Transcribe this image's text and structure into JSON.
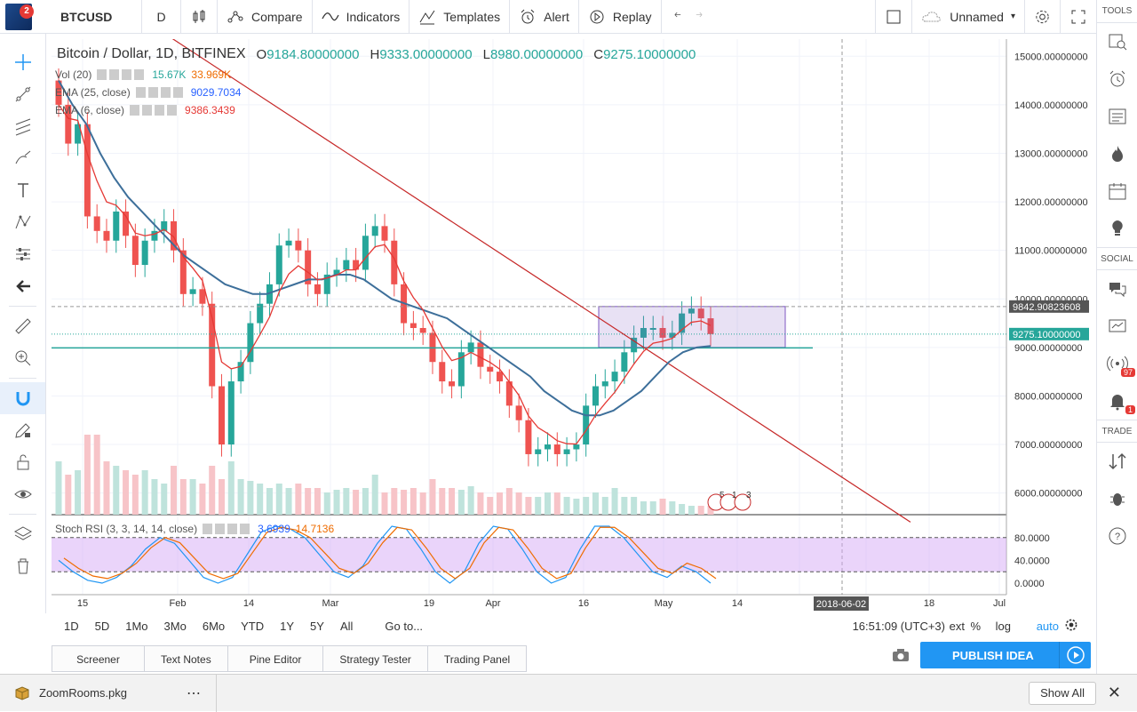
{
  "topbar": {
    "badge": "2",
    "symbol": "BTCUSD",
    "interval": "D",
    "compare": "Compare",
    "indicators": "Indicators",
    "templates": "Templates",
    "alert": "Alert",
    "replay": "Replay",
    "layout_name": "Unnamed"
  },
  "legend": {
    "title": "Bitcoin / Dollar, 1D, BITFINEX",
    "o_label": "O",
    "o": "9184.80000000",
    "h_label": "H",
    "h": "9333.00000000",
    "l_label": "L",
    "l": "8980.00000000",
    "c_label": "C",
    "c": "9275.10000000"
  },
  "indicators": {
    "vol_name": "Vol (20)",
    "vol_v1": "15.67K",
    "vol_v2": "33.969K",
    "ema25_name": "EMA (25, close)",
    "ema25_v": "9029.7034",
    "ema6_name": "EMA (6, close)",
    "ema6_v": "9386.3439",
    "stoch_name": "Stoch RSI (3, 3, 14, 14, close)",
    "stoch_k": "3.6939",
    "stoch_d": "14.7136"
  },
  "price_axis": [
    "15000.00000000",
    "14000.00000000",
    "13000.00000000",
    "12000.00000000",
    "11000.00000000",
    "10000.00000000",
    "9000.00000000",
    "8000.00000000",
    "7000.00000000",
    "6000.00000000"
  ],
  "price_markers": {
    "line": "9842.90823608",
    "last": "9275.10000000"
  },
  "stoch_axis": [
    "80.0000",
    "40.0000",
    "0.0000"
  ],
  "time_axis": [
    "15",
    "Feb",
    "14",
    "Mar",
    "19",
    "Apr",
    "16",
    "May",
    "14",
    "18",
    "Jul"
  ],
  "crosshair_date": "2018-06-02",
  "event_labels": [
    "5",
    "1",
    "3"
  ],
  "ranges": [
    "1D",
    "5D",
    "1Mo",
    "3Mo",
    "6Mo",
    "YTD",
    "1Y",
    "5Y",
    "All"
  ],
  "goto": "Go to...",
  "clock": "16:51:09 (UTC+3)",
  "scale_opts": {
    "ext": "ext",
    "pct": "%",
    "log": "log",
    "auto": "auto"
  },
  "tabs": [
    "Screener",
    "Text Notes",
    "Pine Editor",
    "Strategy Tester",
    "Trading Panel"
  ],
  "publish": "PUBLISH IDEA",
  "right_panel": {
    "tools": "TOOLS",
    "social": "SOCIAL",
    "trade": "TRADE",
    "badge_97": "97",
    "badge_1": "1"
  },
  "downloads": {
    "file": "ZoomRooms.pkg",
    "show_all": "Show All"
  },
  "chart_data": {
    "type": "candlestick",
    "symbol": "BTCUSD",
    "timeframe": "1D",
    "title": "Bitcoin / Dollar, 1D, BITFINEX",
    "ylim": [
      5700,
      15500
    ],
    "close_approx": [
      14000,
      13200,
      13600,
      11700,
      11400,
      11200,
      11800,
      11300,
      10700,
      11200,
      11400,
      11600,
      11000,
      10100,
      10200,
      9900,
      8200,
      7000,
      8300,
      8700,
      9500,
      9900,
      10300,
      11100,
      11200,
      11000,
      10300,
      10100,
      10500,
      10600,
      10800,
      10600,
      11300,
      11500,
      11200,
      10300,
      9500,
      9400,
      9300,
      8700,
      8300,
      8200,
      8900,
      9100,
      8600,
      8500,
      8300,
      7800,
      7500,
      6800,
      6900,
      7000,
      6800,
      6900,
      7000,
      7800,
      8200,
      8300,
      8500,
      8900,
      9200,
      9400,
      9400,
      9200,
      9300,
      9700,
      9800,
      9600,
      9275
    ],
    "ema25_approx": [
      14500,
      14000,
      13600,
      13000,
      12500,
      12100,
      11800,
      11500,
      11200,
      10900,
      10700,
      10500,
      10300,
      10200,
      10100,
      10100,
      10200,
      10300,
      10400,
      10400,
      10500,
      10500,
      10400,
      10200,
      10000,
      9900,
      9800,
      9700,
      9600,
      9400,
      9200,
      9000,
      8800,
      8600,
      8400,
      8100,
      7900,
      7700,
      7600,
      7600,
      7700,
      7900,
      8100,
      8400,
      8700,
      8900,
      9000,
      9030
    ],
    "trendline": {
      "from_price": 15700,
      "to_price": 5400,
      "color": "#c62828"
    },
    "rectangle": {
      "price_top": 9842.9,
      "price_bottom": 9000
    },
    "horizontal_line": 8990,
    "volume_approx": [
      60,
      45,
      50,
      90,
      90,
      60,
      55,
      50,
      45,
      50,
      40,
      35,
      55,
      40,
      40,
      35,
      55,
      40,
      60,
      40,
      38,
      35,
      30,
      35,
      30,
      35,
      30,
      30,
      25,
      28,
      30,
      28,
      30,
      45,
      25,
      30,
      28,
      30,
      25,
      40,
      30,
      30,
      28,
      32,
      25,
      20,
      25,
      30,
      25,
      20,
      20,
      25,
      25,
      20,
      18,
      20,
      25,
      20,
      30,
      20,
      20,
      15,
      15,
      18,
      15,
      12,
      10,
      10,
      10
    ],
    "stoch_rsi_k_approx": [
      40,
      20,
      5,
      0,
      10,
      30,
      60,
      80,
      70,
      40,
      10,
      0,
      10,
      50,
      90,
      100,
      95,
      80,
      50,
      20,
      10,
      30,
      70,
      100,
      95,
      60,
      20,
      0,
      20,
      70,
      100,
      95,
      60,
      20,
      0,
      10,
      60,
      100,
      100,
      80,
      50,
      20,
      10,
      30,
      20,
      0
    ],
    "stoch_axis_ticks": [
      0,
      40,
      80
    ]
  }
}
